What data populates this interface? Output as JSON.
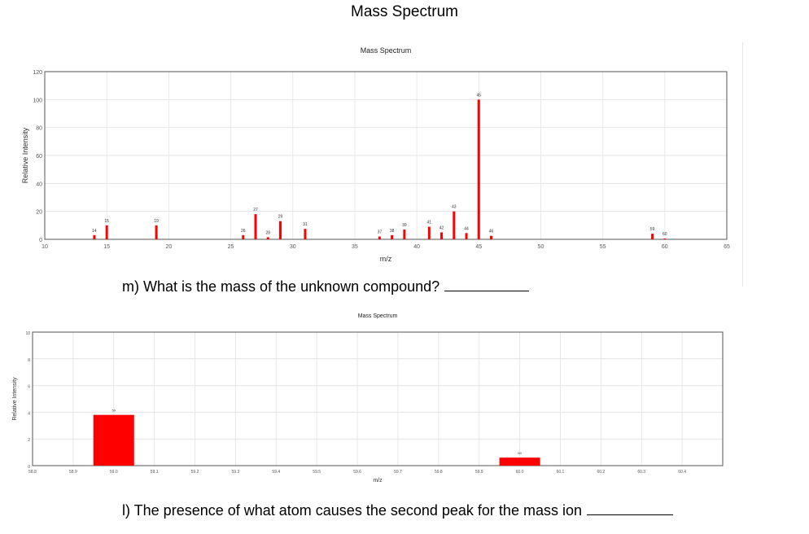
{
  "page": {
    "title": "Mass Spectrum",
    "question_m": "m)  What is the mass of the unknown compound?",
    "question_l": "l)    The presence of what atom causes the second peak for the mass ion"
  },
  "chart_data": [
    {
      "type": "bar",
      "title": "Mass Spectrum",
      "xlabel": "m/z",
      "ylabel": "Relative Intensity",
      "xlim": [
        10,
        65
      ],
      "ylim": [
        0,
        120
      ],
      "xticks": [
        10,
        15,
        20,
        25,
        30,
        35,
        40,
        45,
        50,
        55,
        60,
        65
      ],
      "yticks": [
        0,
        20,
        40,
        60,
        80,
        100,
        120
      ],
      "grid": true,
      "color": "#ff0000",
      "x": [
        14,
        15,
        19,
        26,
        27,
        28,
        29,
        31,
        37,
        38,
        39,
        41,
        42,
        43,
        44,
        45,
        46,
        59,
        60
      ],
      "values": [
        3,
        10,
        10,
        3,
        18,
        1.5,
        13,
        7.5,
        2,
        3,
        7,
        9,
        5,
        20,
        4.5,
        100,
        2.5,
        4,
        0.6
      ],
      "labels": [
        "14",
        "15",
        "19",
        "26",
        "27",
        "28",
        "29",
        "31",
        "37",
        "38",
        "39",
        "41",
        "42",
        "43",
        "44",
        "45",
        "46",
        "59",
        "60"
      ]
    },
    {
      "type": "bar",
      "title": "Mass Spectrum",
      "xlabel": "m/z",
      "ylabel": "Relative Intensity",
      "xlim": [
        58.8,
        60.5
      ],
      "ylim": [
        0,
        10
      ],
      "xticks": [
        "58.8",
        "58.9",
        "59.0",
        "59.1",
        "59.2",
        "59.3",
        "59.4",
        "59.5",
        "59.6",
        "59.7",
        "59.8",
        "59.9",
        "60.0",
        "60.1",
        "60.2",
        "60.3",
        "60.4"
      ],
      "yticks": [
        0,
        2,
        4,
        6,
        8,
        10
      ],
      "grid": true,
      "color": "#ff0000",
      "x": [
        59,
        60
      ],
      "values": [
        3.8,
        0.6
      ],
      "labels": [
        "59",
        "60"
      ]
    }
  ]
}
